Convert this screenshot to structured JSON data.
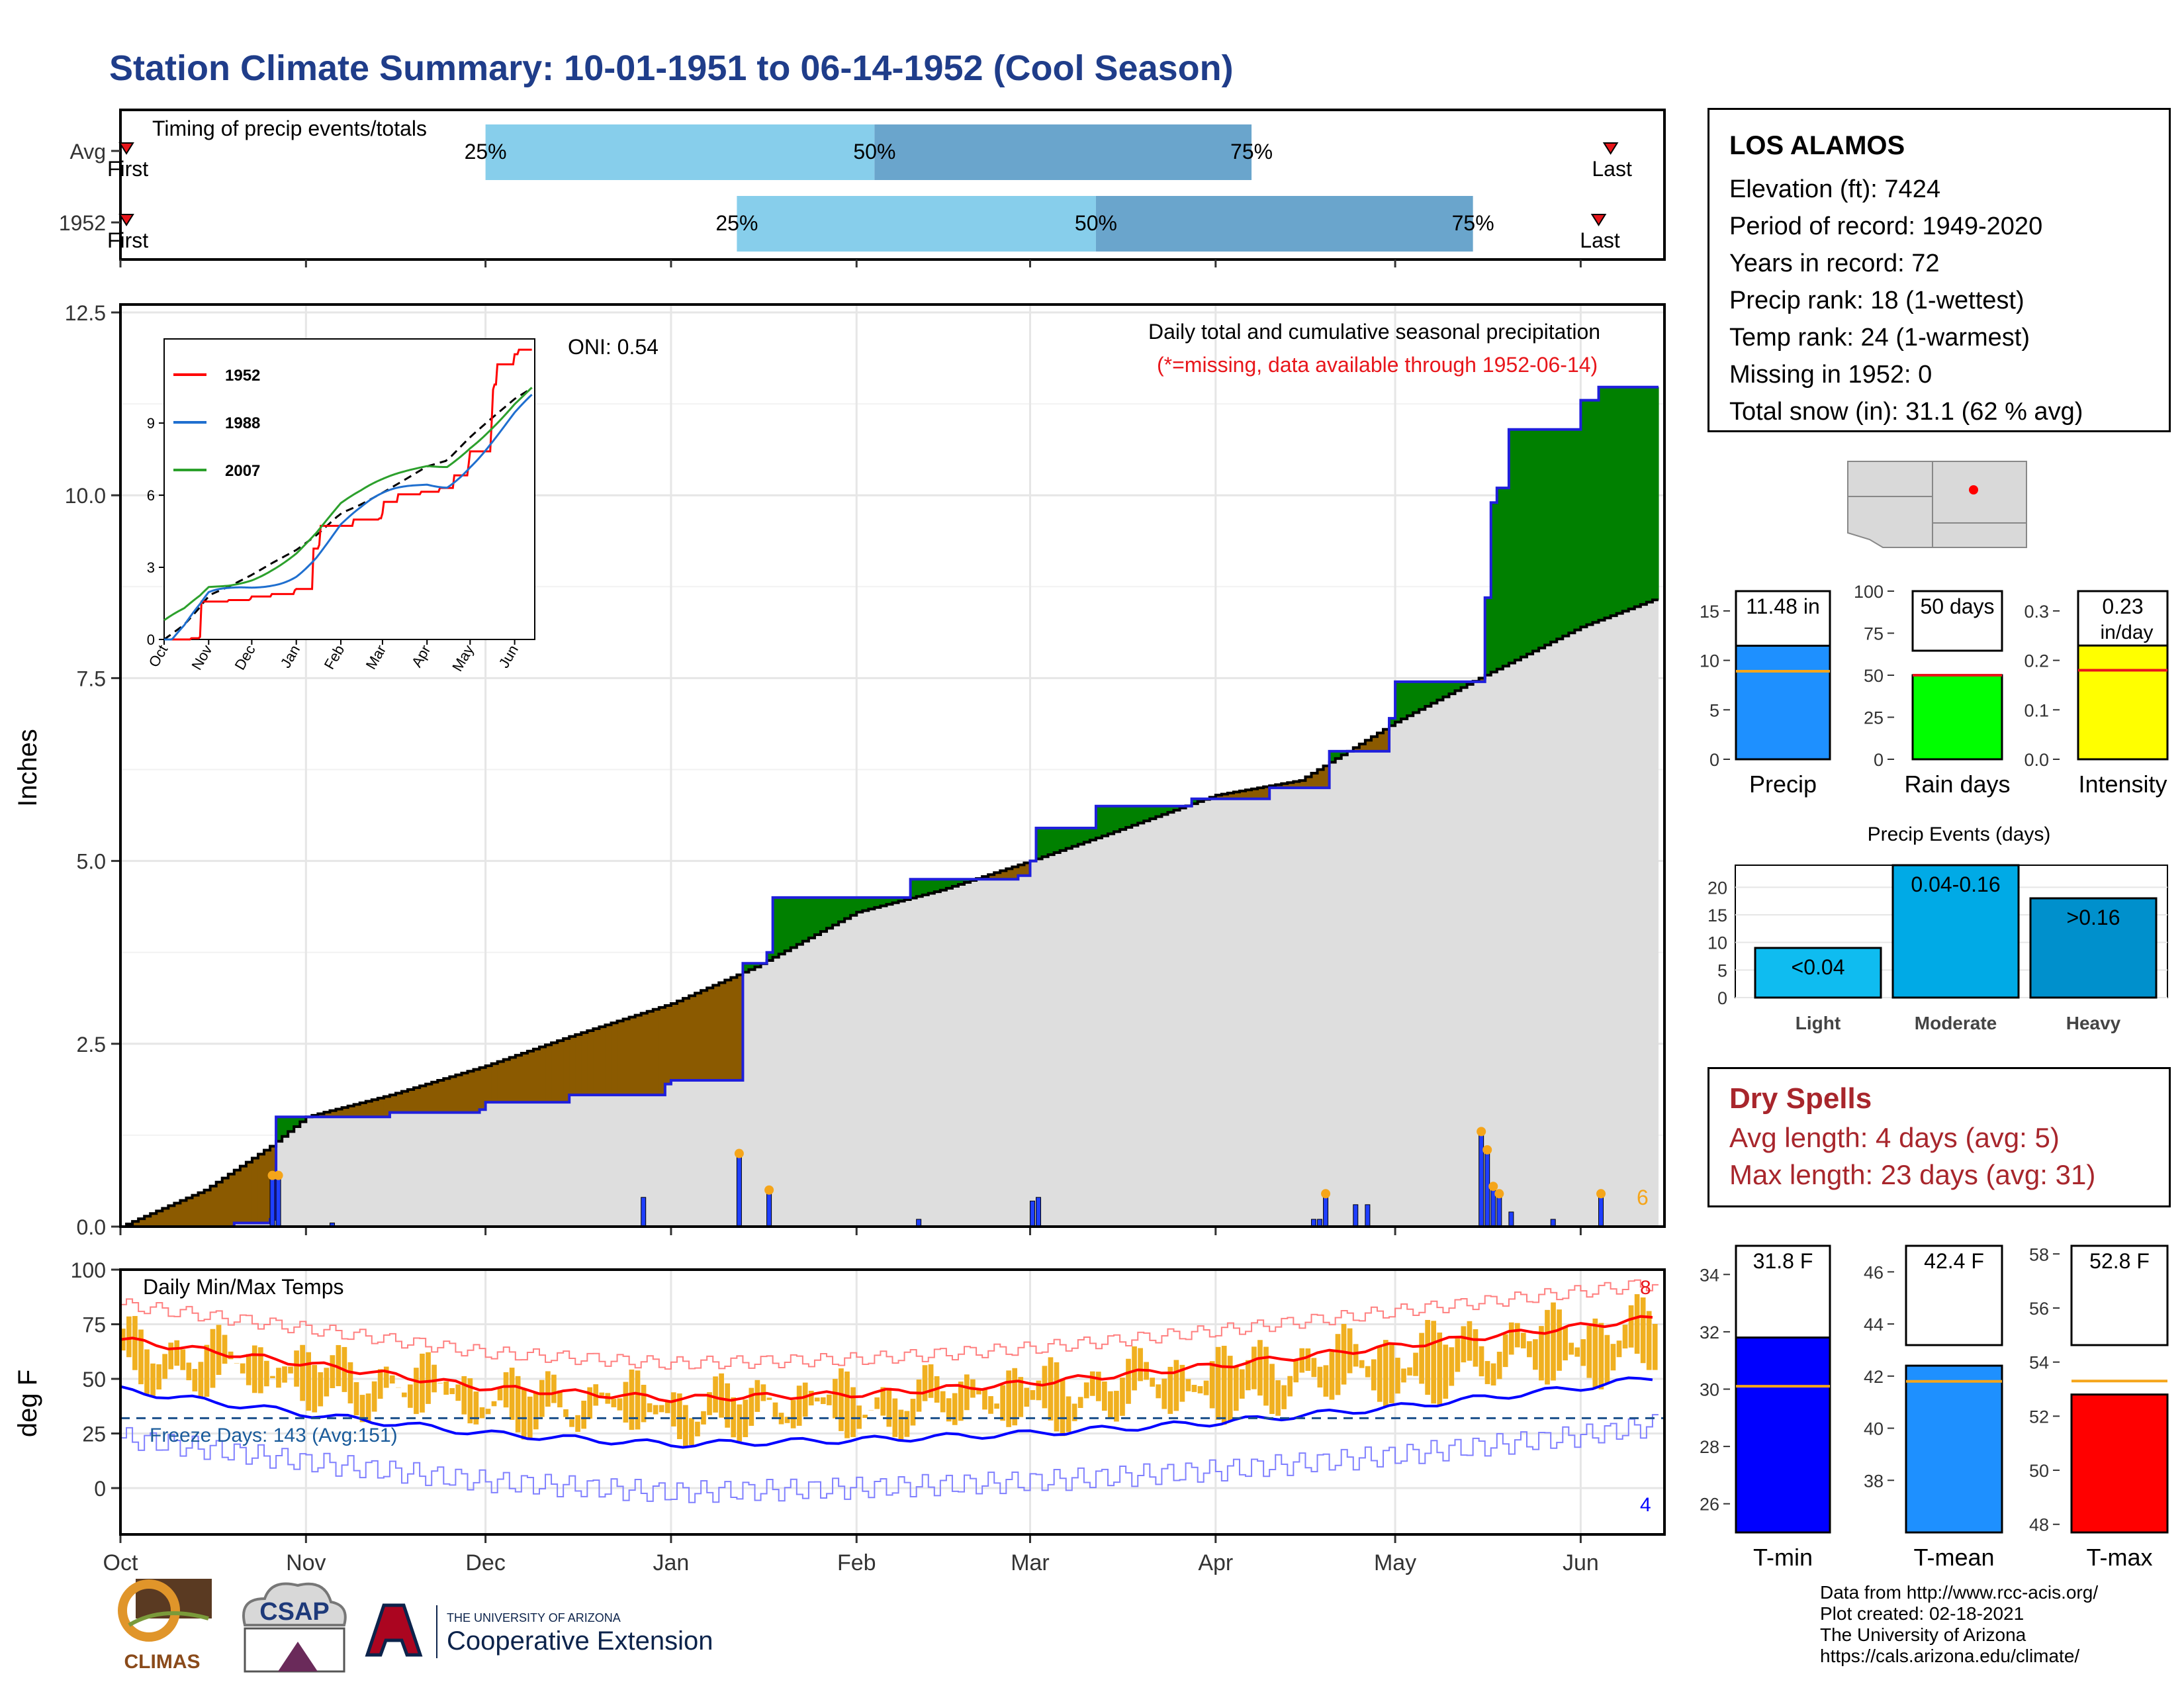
{
  "title": "Station Climate Summary: 10-01-1951 to 06-14-1952 (Cool Season)",
  "timing_panel": {
    "label": "Timing of precip events/totals",
    "rows": [
      {
        "name": "Avg",
        "first_label": "First",
        "last_label": "Last",
        "p25_label": "25%",
        "p50_label": "50%",
        "p75_label": "75%",
        "first": "1951-10-02",
        "p25": "1951-12-01",
        "p50": "1952-02-04",
        "p75": "1952-04-07",
        "last": "1952-06-06"
      },
      {
        "name": "1952",
        "first_label": "First",
        "last_label": "Last",
        "p25_label": "25%",
        "p50_label": "50%",
        "p75_label": "75%",
        "first": "1951-10-02",
        "p25": "1952-01-12",
        "p50": "1952-03-12",
        "p75": "1952-05-14",
        "last": "1952-06-04"
      }
    ]
  },
  "precip_panel": {
    "ylabel": "Inches",
    "oni": "ONI: 0.54",
    "note": "Daily total and cumulative seasonal precipitation",
    "missing_note": "(*=missing, data available through 1952-06-14)",
    "corner_count": "6"
  },
  "temp_panel": {
    "ylabel": "deg F",
    "label": "Daily Min/Max Temps",
    "freeze": "Freeze Days: 143 (Avg:151)",
    "count_high": "8",
    "count_low": "4"
  },
  "station_info": {
    "name": "LOS ALAMOS",
    "lines": [
      "Elevation (ft): 7424",
      "Period of record: 1949-2020",
      "Years in record: 72",
      "Precip rank: 18 (1-wettest)",
      "Temp rank: 24 (1-warmest)",
      "Missing in 1952: 0",
      "Total snow (in): 31.1 (62 % avg)"
    ]
  },
  "dry_spells": {
    "title": "Dry Spells",
    "avg": "Avg length: 4 days (avg: 5)",
    "max": "Max length: 23 days (avg: 31)"
  },
  "events_title": "Precip Events (days)",
  "footer": {
    "line1": "Data from http://www.rcc-acis.org/",
    "line2": "Plot created: 02-18-2021",
    "line3": "The University of Arizona",
    "line4": "https://cals.arizona.edu/climate/"
  },
  "logos": {
    "climas": "CLIMAS",
    "csap": "CSAP",
    "ua_small": "THE UNIVERSITY OF ARIZONA",
    "ua_big": "Cooperative Extension"
  },
  "colors": {
    "title": "#1f3d8a",
    "above": "#008000",
    "below": "#8b5a00",
    "cum_avg_fill": "#dedede",
    "daily_bar": "#1f3fff",
    "tmax_line": "#ff0000",
    "tmin_line": "#0000ff",
    "temp_bar": "#f0b020"
  },
  "chart_data": [
    {
      "type": "area",
      "title": "Daily total and cumulative seasonal precipitation",
      "xlabel": "",
      "ylabel": "Inches",
      "ylim": [
        0,
        12.5
      ],
      "yticks": [
        "0.0",
        "2.5",
        "5.0",
        "7.5",
        "10.0",
        "12.5"
      ],
      "xticks": [
        "Oct",
        "Nov",
        "Dec",
        "Jan",
        "Feb",
        "Mar",
        "Apr",
        "May",
        "Jun"
      ],
      "grid": true,
      "series": [
        {
          "name": "Observed cumulative (1952)",
          "points": [
            [
              "1951-10-01",
              0
            ],
            [
              "1951-10-20",
              0.05
            ],
            [
              "1951-10-26",
              0.1
            ],
            [
              "1951-10-27",
              1.5
            ],
            [
              "1951-11-15",
              1.56
            ],
            [
              "1951-11-30",
              1.6
            ],
            [
              "1951-12-01",
              1.7
            ],
            [
              "1951-12-15",
              1.8
            ],
            [
              "1951-12-31",
              1.95
            ],
            [
              "1952-01-01",
              2.0
            ],
            [
              "1952-01-12",
              2.0
            ],
            [
              "1952-01-13",
              3.6
            ],
            [
              "1952-01-17",
              3.75
            ],
            [
              "1952-01-18",
              4.5
            ],
            [
              "1952-02-09",
              4.5
            ],
            [
              "1952-02-10",
              4.75
            ],
            [
              "1952-02-28",
              4.8
            ],
            [
              "1952-03-01",
              5.0
            ],
            [
              "1952-03-02",
              5.45
            ],
            [
              "1952-03-12",
              5.75
            ],
            [
              "1952-03-28",
              5.85
            ],
            [
              "1952-04-10",
              6.0
            ],
            [
              "1952-04-19",
              6.0
            ],
            [
              "1952-04-20",
              6.5
            ],
            [
              "1952-04-30",
              6.95
            ],
            [
              "1952-05-01",
              7.45
            ],
            [
              "1952-05-15",
              7.45
            ],
            [
              "1952-05-16",
              8.6
            ],
            [
              "1952-05-17",
              9.9
            ],
            [
              "1952-05-18",
              10.1
            ],
            [
              "1952-05-20",
              10.9
            ],
            [
              "1952-06-01",
              11.3
            ],
            [
              "1952-06-04",
              11.48
            ],
            [
              "1952-06-14",
              11.48
            ]
          ]
        },
        {
          "name": "Average cumulative",
          "points": [
            [
              "1951-10-01",
              0
            ],
            [
              "1951-10-15",
              0.5
            ],
            [
              "1951-10-26",
              1.1
            ],
            [
              "1951-11-01",
              1.5
            ],
            [
              "1951-11-15",
              1.8
            ],
            [
              "1951-12-01",
              2.2
            ],
            [
              "1951-12-15",
              2.6
            ],
            [
              "1952-01-01",
              3.05
            ],
            [
              "1952-01-15",
              3.55
            ],
            [
              "1952-02-01",
              4.3
            ],
            [
              "1952-02-15",
              4.6
            ],
            [
              "1952-03-01",
              5.0
            ],
            [
              "1952-03-15",
              5.4
            ],
            [
              "1952-04-01",
              5.9
            ],
            [
              "1952-04-15",
              6.1
            ],
            [
              "1952-05-01",
              6.9
            ],
            [
              "1952-05-15",
              7.5
            ],
            [
              "1952-06-01",
              8.2
            ],
            [
              "1952-06-14",
              8.6
            ]
          ]
        }
      ],
      "daily_precip": [
        [
          "1951-10-26",
          0.7
        ],
        [
          "1951-10-27",
          0.7
        ],
        [
          "1951-11-05",
          0.05
        ],
        [
          "1951-12-27",
          0.4
        ],
        [
          "1952-01-12",
          1.0
        ],
        [
          "1952-01-17",
          0.5
        ],
        [
          "1952-02-11",
          0.1
        ],
        [
          "1952-03-01",
          0.35
        ],
        [
          "1952-03-02",
          0.4
        ],
        [
          "1952-04-17",
          0.1
        ],
        [
          "1952-04-18",
          0.1
        ],
        [
          "1952-04-19",
          0.45
        ],
        [
          "1952-04-24",
          0.3
        ],
        [
          "1952-04-26",
          0.3
        ],
        [
          "1952-05-15",
          1.3
        ],
        [
          "1952-05-16",
          1.05
        ],
        [
          "1952-05-17",
          0.55
        ],
        [
          "1952-05-18",
          0.45
        ],
        [
          "1952-05-20",
          0.2
        ],
        [
          "1952-05-27",
          0.1
        ],
        [
          "1952-06-04",
          0.45
        ]
      ]
    },
    {
      "type": "line",
      "title": "Daily Min/Max Temps",
      "ylabel": "deg F",
      "ylim": [
        -20,
        100
      ],
      "yticks": [
        "0",
        "25",
        "50",
        "75",
        "100"
      ],
      "xticks": [
        "Oct",
        "Nov",
        "Dec",
        "Jan",
        "Feb",
        "Mar",
        "Apr",
        "May",
        "Jun"
      ],
      "freeze_line": 32,
      "series": [
        {
          "name": "Avg max",
          "points": [
            [
              "1951-10-01",
              68
            ],
            [
              "1951-11-01",
              57
            ],
            [
              "1951-12-01",
              46
            ],
            [
              "1952-01-01",
              41
            ],
            [
              "1952-02-01",
              43
            ],
            [
              "1952-03-01",
              48
            ],
            [
              "1952-04-01",
              56
            ],
            [
              "1952-05-01",
              65
            ],
            [
              "1952-06-01",
              74
            ],
            [
              "1952-06-14",
              78
            ]
          ]
        },
        {
          "name": "Avg min",
          "points": [
            [
              "1951-10-01",
              45
            ],
            [
              "1951-11-01",
              34
            ],
            [
              "1951-12-01",
              25
            ],
            [
              "1952-01-01",
              20
            ],
            [
              "1952-02-01",
              22
            ],
            [
              "1952-03-01",
              25
            ],
            [
              "1952-04-01",
              30
            ],
            [
              "1952-05-01",
              37
            ],
            [
              "1952-06-01",
              46
            ],
            [
              "1952-06-14",
              51
            ]
          ]
        }
      ]
    },
    {
      "type": "bar",
      "categories": [
        "Precip"
      ],
      "values": [
        11.48
      ],
      "label": "11.48 in",
      "avg": 8.9,
      "ylim": [
        0,
        17
      ],
      "yticks": [
        "0",
        "5",
        "10",
        "15"
      ]
    },
    {
      "type": "bar",
      "categories": [
        "Rain days"
      ],
      "values": [
        50
      ],
      "label": "50 days",
      "avg": 50,
      "ylim": [
        0,
        100
      ],
      "yticks": [
        "0",
        "25",
        "50",
        "75",
        "100"
      ]
    },
    {
      "type": "bar",
      "categories": [
        "Intensity"
      ],
      "values": [
        0.23
      ],
      "label": "0.23",
      "unit": "in/day",
      "avg": 0.18,
      "ylim": [
        0,
        0.34
      ],
      "yticks": [
        "0.0",
        "0.1",
        "0.2",
        "0.3"
      ]
    },
    {
      "type": "bar",
      "title": "Precip Events (days)",
      "categories": [
        "Light",
        "Moderate",
        "Heavy"
      ],
      "bar_labels": [
        "<0.04",
        "0.04-0.16",
        ">0.16"
      ],
      "values": [
        9,
        24,
        18
      ],
      "ylim": [
        0,
        24
      ],
      "yticks": [
        "0",
        "5",
        "10",
        "15",
        "20"
      ]
    },
    {
      "type": "bar",
      "categories": [
        "T-min"
      ],
      "values": [
        31.8
      ],
      "label": "31.8 F",
      "avg": 30.1,
      "ylim": [
        25,
        35
      ],
      "yticks": [
        "26",
        "28",
        "30",
        "32",
        "34"
      ]
    },
    {
      "type": "bar",
      "categories": [
        "T-mean"
      ],
      "values": [
        42.4
      ],
      "label": "42.4 F",
      "avg": 41.8,
      "ylim": [
        36,
        47
      ],
      "yticks": [
        "38",
        "40",
        "42",
        "44",
        "46"
      ]
    },
    {
      "type": "bar",
      "categories": [
        "T-max"
      ],
      "values": [
        52.8
      ],
      "label": "52.8 F",
      "avg": 53.3,
      "ylim": [
        47.7,
        58.3
      ],
      "yticks": [
        "48",
        "50",
        "52",
        "54",
        "56",
        "58"
      ]
    }
  ]
}
